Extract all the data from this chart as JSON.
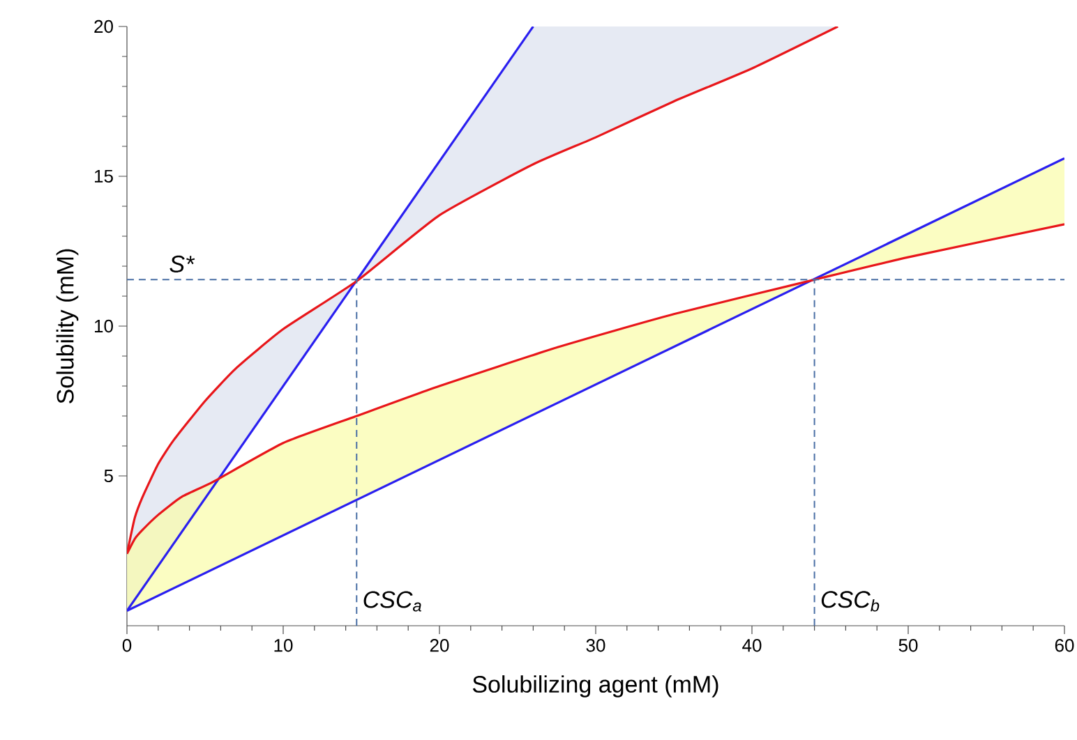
{
  "chart_data": {
    "type": "line",
    "xlabel": "Solubilizing agent (mM)",
    "ylabel": "Solubility (mM)",
    "xlim": [
      0,
      60
    ],
    "xticks": [
      0,
      10,
      20,
      30,
      40,
      50,
      60
    ],
    "ylim": [
      0,
      20
    ],
    "yticks": [
      5,
      10,
      15,
      20
    ],
    "grid": false,
    "marker": "none",
    "line_style": "solid",
    "series": [
      {
        "color": "#2a1ff0",
        "x": [
          0,
          26
        ],
        "values": [
          0.5,
          20
        ]
      },
      {
        "color": "#2a1ff0",
        "x": [
          0,
          60
        ],
        "values": [
          0.5,
          15.6
        ]
      },
      {
        "color": "#e8161a",
        "x": [
          0,
          0.5,
          1,
          2,
          3,
          5,
          7,
          10,
          14.7,
          20,
          26,
          30,
          35,
          40,
          45.5
        ],
        "values": [
          2.4,
          3.6,
          4.3,
          5.4,
          6.2,
          7.5,
          8.6,
          9.9,
          11.5,
          13.7,
          15.4,
          16.3,
          17.5,
          18.6,
          20
        ],
        "lower": [
          0.5,
          0.9,
          1.3,
          2.0,
          2.8,
          4.3,
          5.8,
          8.0,
          11.5,
          13.7,
          15.4,
          16.3,
          17.5,
          18.6,
          20
        ],
        "upper": [
          2.4,
          3.6,
          4.3,
          5.4,
          6.2,
          7.5,
          8.6,
          9.9,
          11.5,
          15.5,
          20,
          20,
          20,
          20,
          20
        ]
      },
      {
        "color": "#e8161a",
        "x": [
          0,
          0.5,
          1,
          2,
          3.5,
          5.5,
          10,
          14.7,
          20,
          27.6,
          35,
          44,
          50,
          60
        ],
        "values": [
          2.4,
          2.9,
          3.2,
          3.7,
          4.3,
          4.8,
          6.1,
          7.0,
          8.0,
          9.3,
          10.4,
          11.55,
          12.3,
          13.4
        ],
        "lower": [
          0.5,
          0.6,
          0.8,
          1.0,
          1.4,
          1.9,
          3.0,
          4.2,
          5.5,
          7.5,
          9.3,
          11.55,
          12.3,
          13.4
        ],
        "upper": [
          2.4,
          2.9,
          3.2,
          3.7,
          4.3,
          4.8,
          6.1,
          7.0,
          8.0,
          9.3,
          10.4,
          11.55,
          13.1,
          15.6
        ]
      }
    ],
    "ref_lines": [
      {
        "axis": "y",
        "value": 11.55,
        "label": "S*",
        "color": "#4a6fa5",
        "line_style": "dashed"
      },
      {
        "axis": "x",
        "value": 14.7,
        "label": "CSC$_{a}$",
        "color": "#4a6fa5",
        "line_style": "dashed"
      },
      {
        "axis": "x",
        "value": 44,
        "label": "CSC$_{b}$",
        "color": "#4a6fa5",
        "line_style": "dashed"
      }
    ]
  }
}
